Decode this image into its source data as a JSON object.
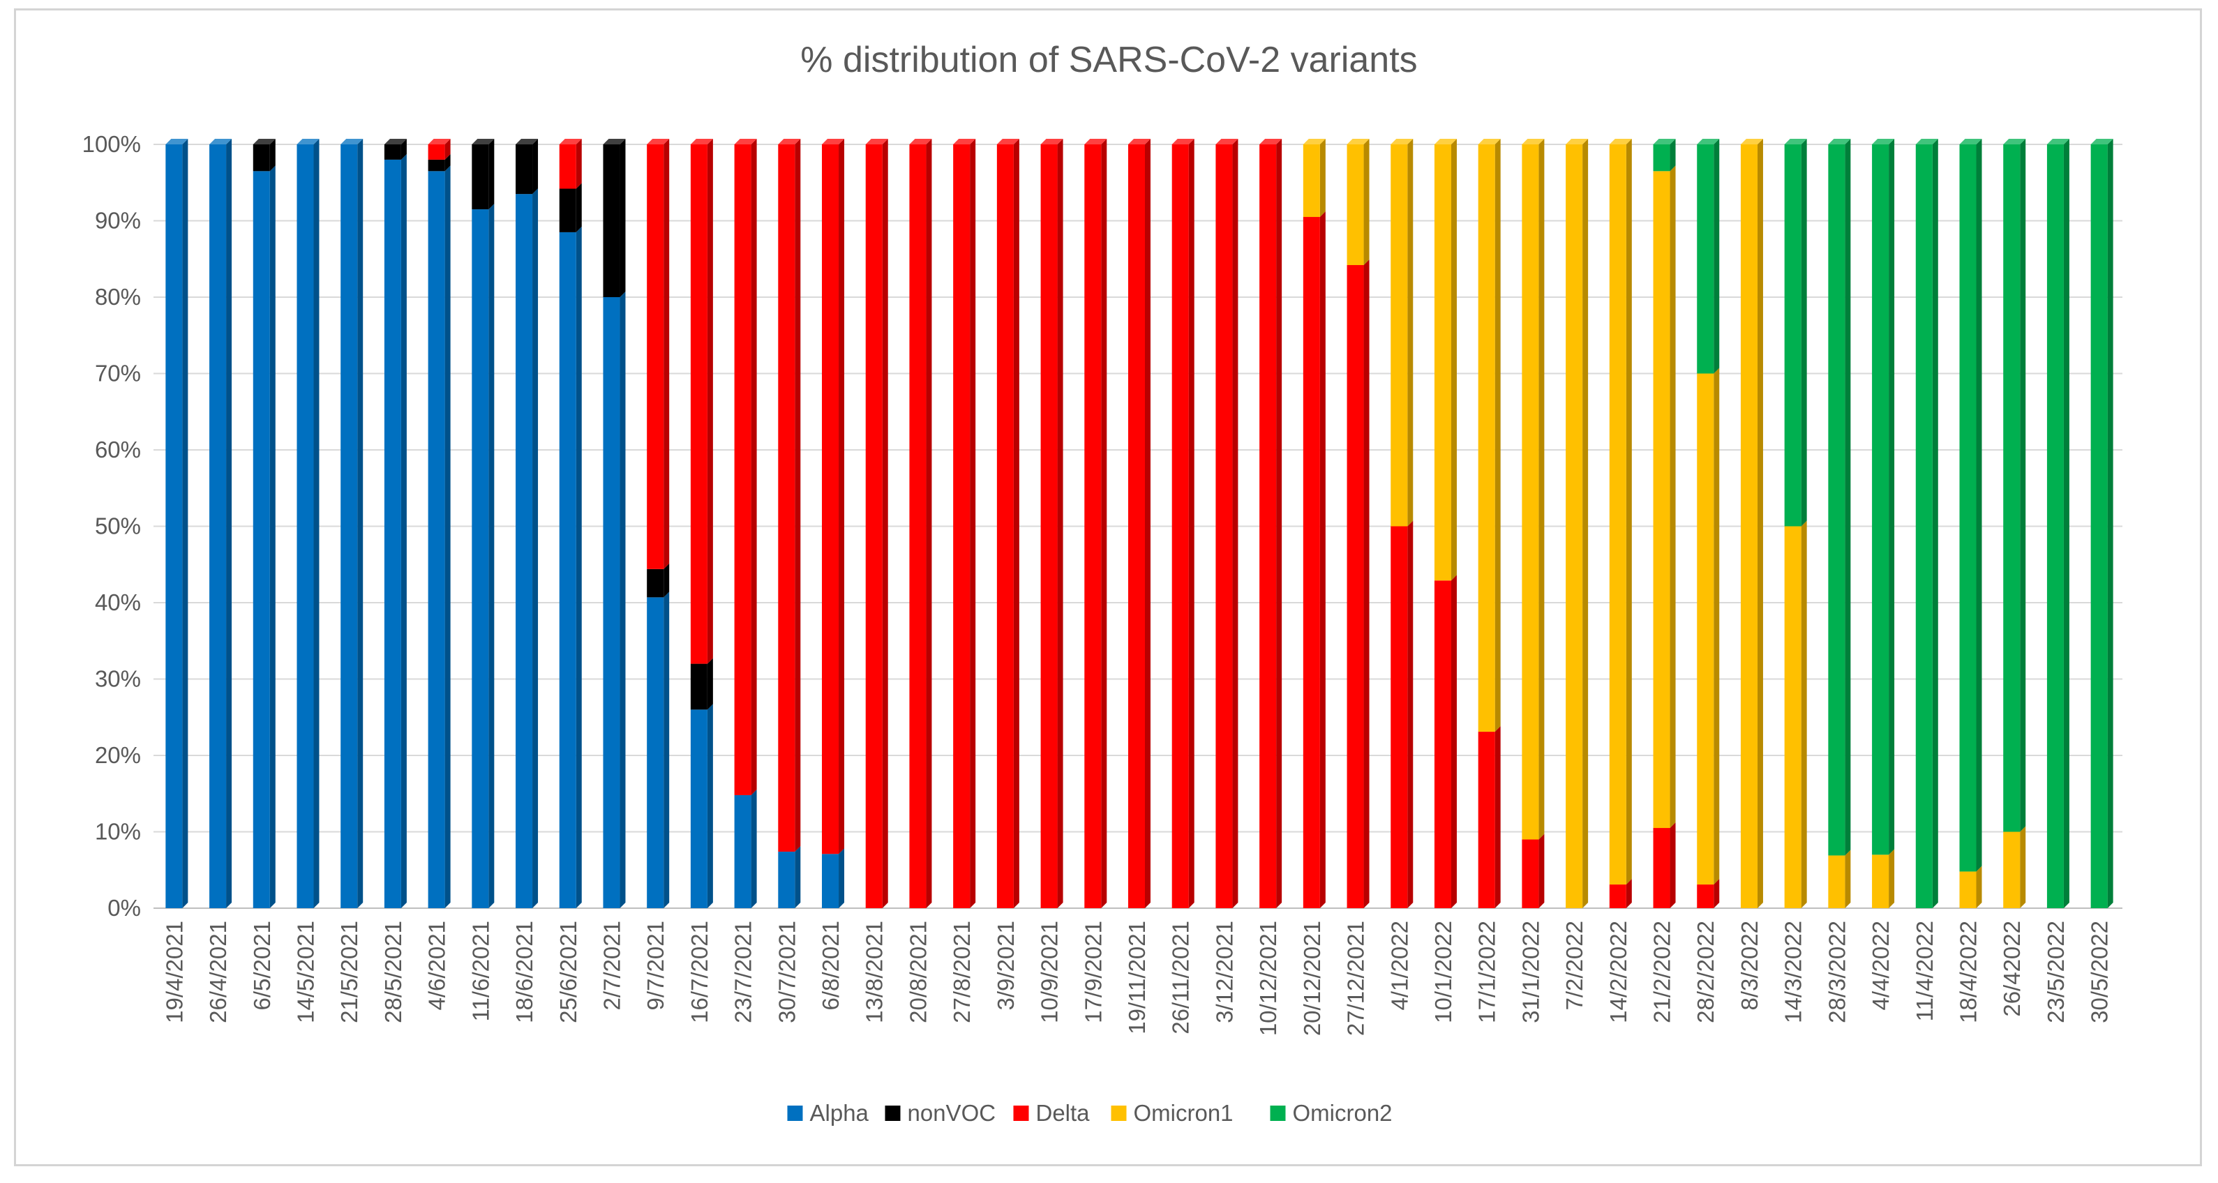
{
  "chart_data": {
    "type": "bar",
    "stacked": true,
    "title": "% distribution of SARS-CoV-2 variants",
    "xlabel": "",
    "ylabel": "",
    "ylim": [
      0,
      100
    ],
    "y_ticks": [
      "0%",
      "10%",
      "20%",
      "30%",
      "40%",
      "50%",
      "60%",
      "70%",
      "80%",
      "90%",
      "100%"
    ],
    "grid": true,
    "legend_position": "bottom",
    "categories": [
      "19/4/2021",
      "26/4/2021",
      "6/5/2021",
      "14/5/2021",
      "21/5/2021",
      "28/5/2021",
      "4/6/2021",
      "11/6/2021",
      "18/6/2021",
      "25/6/2021",
      "2/7/2021",
      "9/7/2021",
      "16/7/2021",
      "23/7/2021",
      "30/7/2021",
      "6/8/2021",
      "13/8/2021",
      "20/8/2021",
      "27/8/2021",
      "3/9/2021",
      "10/9/2021",
      "17/9/2021",
      "19/11/2021",
      "26/11/2021",
      "3/12/2021",
      "10/12/2021",
      "20/12/2021",
      "27/12/2021",
      "4/1/2022",
      "10/1/2022",
      "17/1/2022",
      "31/1/2022",
      "7/2/2022",
      "14/2/2022",
      "21/2/2022",
      "28/2/2022",
      "8/3/2022",
      "14/3/2022",
      "28/3/2022",
      "4/4/2022",
      "11/4/2022",
      "18/4/2022",
      "26/42022",
      "23/5/2022",
      "30/5/2022"
    ],
    "series": [
      {
        "name": "Alpha",
        "color": "#0070C0",
        "values": [
          100,
          100,
          96.5,
          100,
          100,
          98,
          96.5,
          91.5,
          93.5,
          88.5,
          80,
          40.7,
          26,
          14.8,
          7.4,
          7.1,
          0,
          0,
          0,
          0,
          0,
          0,
          0,
          0,
          0,
          0,
          0,
          0,
          0,
          0,
          0,
          0,
          0,
          0,
          0,
          0,
          0,
          0,
          0,
          0,
          0,
          0,
          0,
          0,
          0
        ]
      },
      {
        "name": "nonVOC",
        "color": "#000000",
        "values": [
          0,
          0,
          3.5,
          0,
          0,
          2,
          1.5,
          8.5,
          6.5,
          5.7,
          20,
          3.7,
          6,
          0,
          0,
          0,
          0,
          0,
          0,
          0,
          0,
          0,
          0,
          0,
          0,
          0,
          0,
          0,
          0,
          0,
          0,
          0,
          0,
          0,
          0,
          0,
          0,
          0,
          0,
          0,
          0,
          0,
          0,
          0,
          0
        ]
      },
      {
        "name": "Delta",
        "color": "#FF0000",
        "values": [
          0,
          0,
          0,
          0,
          0,
          0,
          2,
          0,
          0,
          5.8,
          0,
          55.6,
          68,
          85.2,
          92.6,
          92.9,
          100,
          100,
          100,
          100,
          100,
          100,
          100,
          100,
          100,
          100,
          90.5,
          84.2,
          50,
          42.9,
          23.1,
          9,
          0,
          3.1,
          10.5,
          3.1,
          0,
          0,
          0,
          0,
          0,
          0,
          0,
          0,
          0
        ]
      },
      {
        "name": "Omicron1",
        "color": "#FFC000",
        "values": [
          0,
          0,
          0,
          0,
          0,
          0,
          0,
          0,
          0,
          0,
          0,
          0,
          0,
          0,
          0,
          0,
          0,
          0,
          0,
          0,
          0,
          0,
          0,
          0,
          0,
          0,
          9.5,
          15.8,
          50,
          57.1,
          76.9,
          91,
          100,
          96.9,
          86,
          66.9,
          100,
          50,
          6.9,
          7,
          0,
          4.8,
          10,
          0,
          0
        ]
      },
      {
        "name": "Omicron2",
        "color": "#00B050",
        "values": [
          0,
          0,
          0,
          0,
          0,
          0,
          0,
          0,
          0,
          0,
          0,
          0,
          0,
          0,
          0,
          0,
          0,
          0,
          0,
          0,
          0,
          0,
          0,
          0,
          0,
          0,
          0,
          0,
          0,
          0,
          0,
          0,
          0,
          0,
          3.5,
          30,
          0,
          50,
          93.1,
          93,
          100,
          95.2,
          90,
          100,
          100
        ]
      }
    ]
  }
}
